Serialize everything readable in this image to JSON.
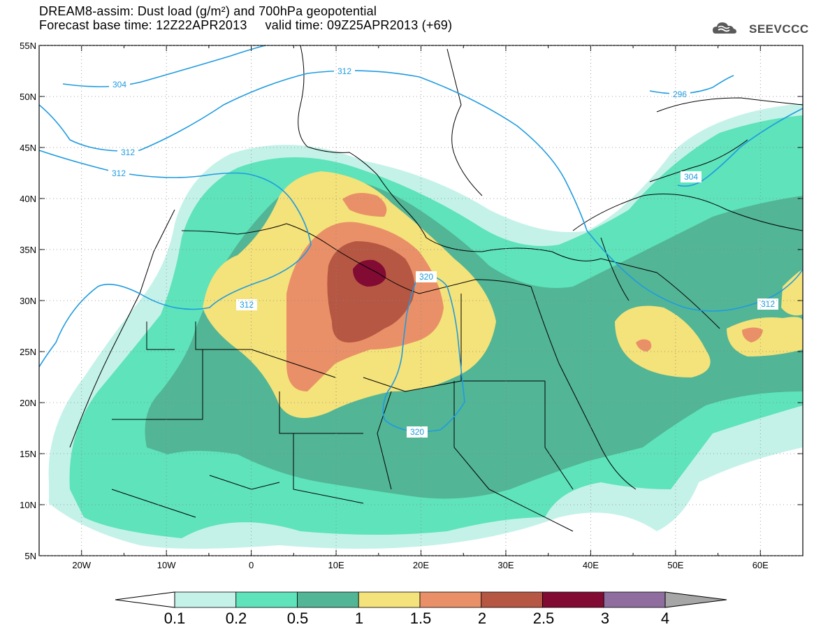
{
  "header": {
    "title_line1": "DREAM8-assim: Dust load (g/m²) and 700hPa geopotential",
    "title_line2": "Forecast base time: 12Z22APR2013     valid time: 09Z25APR2013 (+69)",
    "logo_text": "SEEVCCC"
  },
  "map": {
    "lon_range": [
      -25,
      65
    ],
    "lat_range": [
      5,
      55
    ],
    "lon_ticks": [
      {
        "value": -20,
        "label": "20W"
      },
      {
        "value": -10,
        "label": "10W"
      },
      {
        "value": 0,
        "label": "0"
      },
      {
        "value": 10,
        "label": "10E"
      },
      {
        "value": 20,
        "label": "20E"
      },
      {
        "value": 30,
        "label": "30E"
      },
      {
        "value": 40,
        "label": "40E"
      },
      {
        "value": 50,
        "label": "50E"
      },
      {
        "value": 60,
        "label": "60E"
      }
    ],
    "lat_ticks": [
      {
        "value": 55,
        "label": "55N"
      },
      {
        "value": 50,
        "label": "50N"
      },
      {
        "value": 45,
        "label": "45N"
      },
      {
        "value": 40,
        "label": "40N"
      },
      {
        "value": 35,
        "label": "35N"
      },
      {
        "value": 30,
        "label": "30N"
      },
      {
        "value": 25,
        "label": "25N"
      },
      {
        "value": 20,
        "label": "20N"
      },
      {
        "value": 15,
        "label": "15N"
      },
      {
        "value": 10,
        "label": "10N"
      },
      {
        "value": 5,
        "label": "5N"
      }
    ],
    "contour_labels": [
      "304",
      "312",
      "312",
      "312",
      "312",
      "320",
      "320",
      "296",
      "304",
      "312"
    ]
  },
  "colorbar": {
    "labels": [
      "0.1",
      "0.2",
      "0.5",
      "1",
      "1.5",
      "2",
      "2.5",
      "3",
      "4"
    ],
    "colors": [
      "#c4f2e8",
      "#5ee3ba",
      "#52b595",
      "#f4e27a",
      "#e99068",
      "#b65743",
      "#810b33",
      "#8f6e9f"
    ],
    "under_color": "#ffffff",
    "over_color": "#a6a6a6"
  },
  "colors": {
    "contour": "#1f9be0",
    "level_0_1": "#c4f2e8",
    "level_0_2": "#5ee3ba",
    "level_0_5": "#52b595",
    "level_1": "#f4e27a",
    "level_1_5": "#e99068",
    "level_2": "#b65743",
    "level_2_5": "#810b33"
  }
}
